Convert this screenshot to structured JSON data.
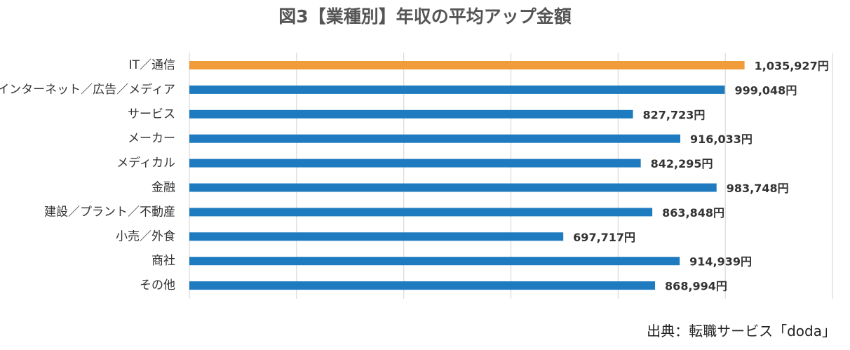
{
  "chart_data": {
    "type": "bar",
    "orientation": "horizontal",
    "title": "図3【業種別】年収の平均アップ金額",
    "categories": [
      "IT／通信",
      "インターネット／広告／メディア",
      "サービス",
      "メーカー",
      "メディカル",
      "金融",
      "建設／プラント／不動産",
      "小売／外食",
      "商社",
      "その他"
    ],
    "values": [
      1035927,
      999048,
      827723,
      916033,
      842295,
      983748,
      863848,
      697717,
      914939,
      868994
    ],
    "value_labels": [
      "1,035,927円",
      "999,048円",
      "827,723円",
      "916,033円",
      "842,295円",
      "983,748円",
      "863,848円",
      "697,717円",
      "914,939円",
      "868,994円"
    ],
    "xlim": [
      0,
      1200000
    ],
    "grid": true,
    "legend": "none",
    "colors": {
      "highlight": "#F09C3A",
      "default": "#1F7BBF",
      "grid": "#D9D9D9"
    },
    "highlight_index": 0
  },
  "source": "出典：転職サービス「doda」"
}
